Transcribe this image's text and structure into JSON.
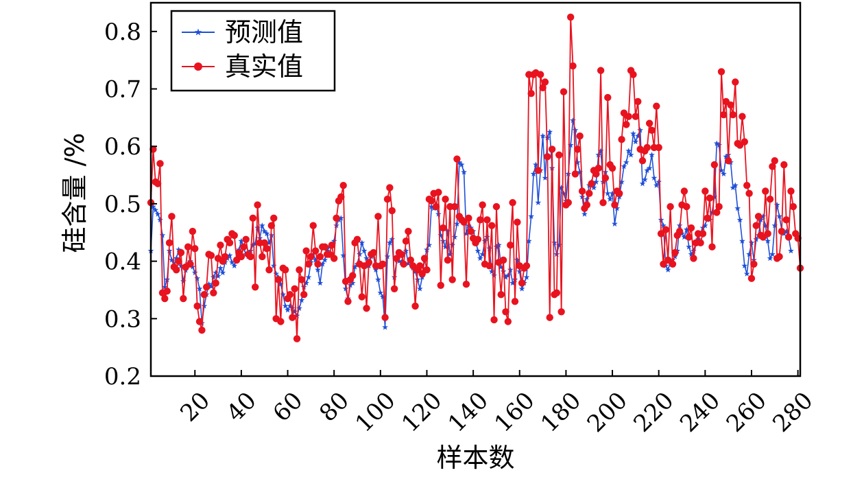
{
  "chart_data": {
    "type": "line",
    "xlabel": "样本数",
    "ylabel": "硅含量 /%",
    "xlim": [
      1,
      281
    ],
    "ylim": [
      0.2,
      0.85
    ],
    "xticks": [
      20,
      40,
      60,
      80,
      100,
      120,
      140,
      160,
      180,
      200,
      220,
      240,
      260,
      280
    ],
    "xtick_labels": [
      "20",
      "40",
      "60",
      "80",
      "100",
      "120",
      "140",
      "160",
      "180",
      "200",
      "220",
      "240",
      "260",
      "280"
    ],
    "yticks": [
      0.2,
      0.3,
      0.4,
      0.5,
      0.6,
      0.7,
      0.8
    ],
    "ytick_labels": [
      "0.2",
      "0.3",
      "0.4",
      "0.5",
      "0.6",
      "0.7",
      "0.8"
    ],
    "legend_position": "top-left",
    "x_start": 1,
    "series": [
      {
        "name": "预测值",
        "color": "#1f4fd6",
        "marker": "star",
        "values": [
          0.418,
          0.495,
          0.489,
          0.482,
          0.472,
          0.445,
          0.355,
          0.368,
          0.418,
          0.402,
          0.392,
          0.405,
          0.42,
          0.392,
          0.365,
          0.384,
          0.396,
          0.4,
          0.39,
          0.38,
          0.37,
          0.352,
          0.292,
          0.322,
          0.342,
          0.36,
          0.356,
          0.372,
          0.38,
          0.374,
          0.388,
          0.38,
          0.398,
          0.405,
          0.41,
          0.398,
          0.392,
          0.405,
          0.42,
          0.435,
          0.422,
          0.412,
          0.408,
          0.418,
          0.428,
          0.43,
          0.458,
          0.44,
          0.462,
          0.452,
          0.448,
          0.432,
          0.445,
          0.392,
          0.378,
          0.372,
          0.36,
          0.342,
          0.322,
          0.315,
          0.322,
          0.318,
          0.312,
          0.305,
          0.318,
          0.332,
          0.355,
          0.362,
          0.372,
          0.398,
          0.412,
          0.402,
          0.385,
          0.362,
          0.395,
          0.402,
          0.418,
          0.425,
          0.428,
          0.435,
          0.462,
          0.472,
          0.475,
          0.41,
          0.352,
          0.335,
          0.358,
          0.362,
          0.39,
          0.395,
          0.412,
          0.432,
          0.418,
          0.405,
          0.392,
          0.408,
          0.41,
          0.385,
          0.368,
          0.345,
          0.338,
          0.285,
          0.408,
          0.432,
          0.438,
          0.372,
          0.402,
          0.4,
          0.398,
          0.412,
          0.418,
          0.396,
          0.4,
          0.388,
          0.382,
          0.368,
          0.352,
          0.372,
          0.402,
          0.42,
          0.428,
          0.495,
          0.492,
          0.498,
          0.482,
          0.445,
          0.435,
          0.425,
          0.452,
          0.412,
          0.428,
          0.442,
          0.465,
          0.572,
          0.568,
          0.555,
          0.448,
          0.462,
          0.458,
          0.452,
          0.438,
          0.418,
          0.405,
          0.412,
          0.435,
          0.442,
          0.422,
          0.382,
          0.375,
          0.425,
          0.428,
          0.39,
          0.382,
          0.372,
          0.375,
          0.385,
          0.362,
          0.368,
          0.402,
          0.382,
          0.352,
          0.362,
          0.372,
          0.435,
          0.478,
          0.552,
          0.568,
          0.502,
          0.558,
          0.618,
          0.545,
          0.615,
          0.625,
          0.562,
          0.432,
          0.412,
          0.428,
          0.528,
          0.518,
          0.505,
          0.552,
          0.602,
          0.645,
          0.628,
          0.572,
          0.555,
          0.512,
          0.482,
          0.508,
          0.532,
          0.538,
          0.528,
          0.538,
          0.585,
          0.592,
          0.538,
          0.555,
          0.518,
          0.508,
          0.518,
          0.465,
          0.492,
          0.512,
          0.538,
          0.565,
          0.572,
          0.592,
          0.585,
          0.622,
          0.608,
          0.618,
          0.628,
          0.535,
          0.542,
          0.558,
          0.562,
          0.585,
          0.545,
          0.532,
          0.538,
          0.472,
          0.462,
          0.392,
          0.385,
          0.398,
          0.402,
          0.408,
          0.418,
          0.462,
          0.448,
          0.442,
          0.455,
          0.425,
          0.412,
          0.418,
          0.432,
          0.438,
          0.448,
          0.458,
          0.462,
          0.478,
          0.472,
          0.485,
          0.512,
          0.605,
          0.602,
          0.558,
          0.552,
          0.582,
          0.585,
          0.572,
          0.528,
          0.532,
          0.492,
          0.472,
          0.435,
          0.392,
          0.378,
          0.412,
          0.432,
          0.402,
          0.438,
          0.445,
          0.472,
          0.478,
          0.462,
          0.435,
          0.405,
          0.412,
          0.462,
          0.498,
          0.478,
          0.455,
          0.448,
          0.452,
          0.442,
          0.418
        ]
      },
      {
        "name": "真实值",
        "color": "#e8131f",
        "marker": "circle",
        "values": [
          0.502,
          0.595,
          0.538,
          0.535,
          0.57,
          0.345,
          0.335,
          0.348,
          0.432,
          0.478,
          0.39,
          0.385,
          0.4,
          0.415,
          0.335,
          0.39,
          0.425,
          0.395,
          0.452,
          0.422,
          0.322,
          0.295,
          0.28,
          0.342,
          0.355,
          0.412,
          0.41,
          0.345,
          0.362,
          0.405,
          0.428,
          0.4,
          0.408,
          0.438,
          0.432,
          0.448,
          0.445,
          0.402,
          0.415,
          0.408,
          0.425,
          0.438,
          0.412,
          0.408,
          0.475,
          0.355,
          0.498,
          0.432,
          0.408,
          0.432,
          0.422,
          0.385,
          0.462,
          0.475,
          0.3,
          0.368,
          0.295,
          0.388,
          0.385,
          0.335,
          0.342,
          0.302,
          0.352,
          0.265,
          0.385,
          0.368,
          0.342,
          0.418,
          0.395,
          0.408,
          0.462,
          0.418,
          0.395,
          0.408,
          0.425,
          0.425,
          0.412,
          0.412,
          0.428,
          0.405,
          0.475,
          0.505,
          0.512,
          0.532,
          0.365,
          0.33,
          0.368,
          0.375,
          0.432,
          0.438,
          0.395,
          0.338,
          0.392,
          0.318,
          0.398,
          0.412,
          0.415,
          0.392,
          0.478,
          0.392,
          0.395,
          0.302,
          0.508,
          0.528,
          0.488,
          0.352,
          0.405,
          0.415,
          0.412,
          0.395,
          0.435,
          0.452,
          0.402,
          0.392,
          0.322,
          0.385,
          0.392,
          0.378,
          0.405,
          0.385,
          0.508,
          0.505,
          0.518,
          0.495,
          0.52,
          0.358,
          0.458,
          0.508,
          0.402,
          0.495,
          0.368,
          0.495,
          0.578,
          0.478,
          0.472,
          0.468,
          0.36,
          0.475,
          0.452,
          0.44,
          0.432,
          0.438,
          0.472,
          0.498,
          0.395,
          0.472,
          0.392,
          0.462,
          0.298,
          0.495,
          0.398,
          0.342,
          0.402,
          0.312,
          0.295,
          0.428,
          0.502,
          0.33,
          0.468,
          0.392,
          0.362,
          0.388,
          0.392,
          0.725,
          0.692,
          0.725,
          0.728,
          0.558,
          0.725,
          0.702,
          0.712,
          0.582,
          0.302,
          0.595,
          0.342,
          0.345,
          0.585,
          0.312,
          0.695,
          0.498,
          0.502,
          0.825,
          0.74,
          0.552,
          0.595,
          0.618,
          0.522,
          0.492,
          0.498,
          0.518,
          0.535,
          0.558,
          0.552,
          0.562,
          0.732,
          0.502,
          0.545,
          0.685,
          0.568,
          0.562,
          0.498,
          0.522,
          0.518,
          0.612,
          0.658,
          0.638,
          0.652,
          0.732,
          0.725,
          0.652,
          0.678,
          0.595,
          0.575,
          0.592,
          0.598,
          0.64,
          0.628,
          0.598,
          0.67,
          0.598,
          0.448,
          0.395,
          0.455,
          0.402,
          0.495,
          0.395,
          0.415,
          0.445,
          0.452,
          0.498,
          0.522,
          0.495,
          0.442,
          0.458,
          0.405,
          0.432,
          0.448,
          0.432,
          0.448,
          0.522,
          0.475,
          0.51,
          0.425,
          0.568,
          0.485,
          0.495,
          0.73,
          0.655,
          0.678,
          0.575,
          0.672,
          0.655,
          0.712,
          0.605,
          0.602,
          0.652,
          0.608,
          0.532,
          0.518,
          0.37,
          0.395,
          0.462,
          0.478,
          0.445,
          0.442,
          0.522,
          0.448,
          0.508,
          0.565,
          0.575,
          0.405,
          0.408,
          0.452,
          0.568,
          0.472,
          0.442,
          0.522,
          0.495,
          0.448,
          0.44,
          0.388
        ]
      }
    ]
  }
}
